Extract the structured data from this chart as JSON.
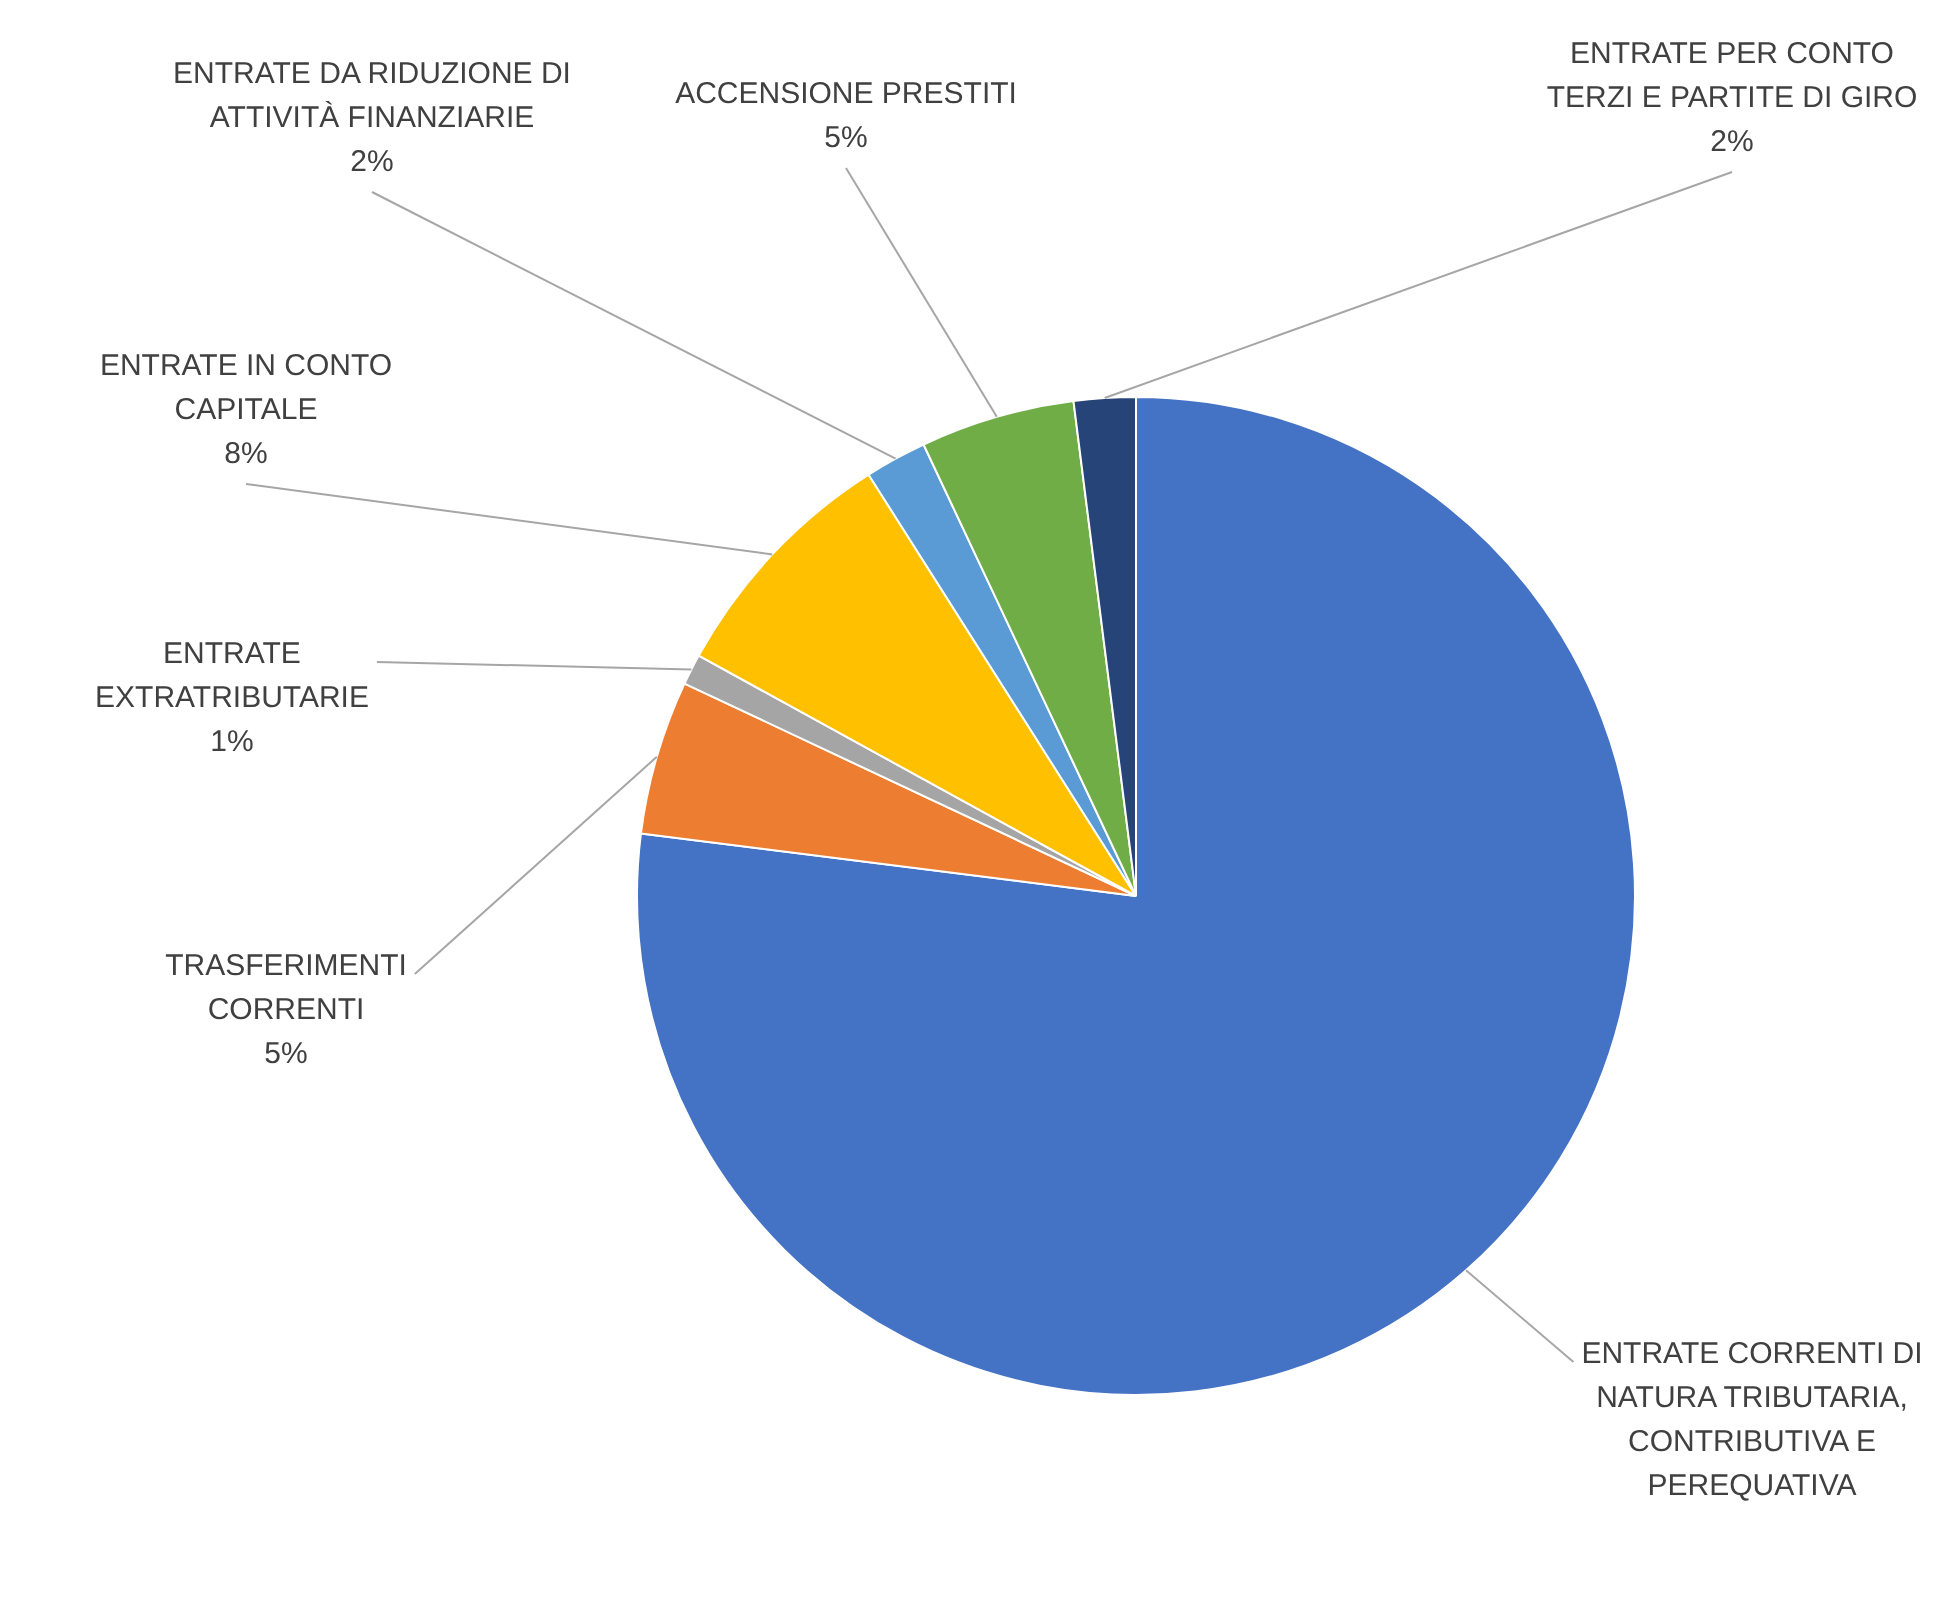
{
  "chart_data": {
    "type": "pie",
    "categories": [
      "ENTRATE CORRENTI DI NATURA TRIBUTARIA, CONTRIBUTIVA E PEREQUATIVA",
      "TRASFERIMENTI CORRENTI",
      "ENTRATE EXTRATRIBUTARIE",
      "ENTRATE IN CONTO CAPITALE",
      "ENTRATE DA RIDUZIONE DI ATTIVITÀ FINANZIARIE",
      "ACCENSIONE PRESTITI",
      "ENTRATE PER CONTO TERZI E PARTITE DI GIRO"
    ],
    "values": [
      77,
      5,
      1,
      8,
      2,
      5,
      2
    ],
    "colors": [
      "#4472c4",
      "#ed7d31",
      "#a5a5a5",
      "#ffc000",
      "#5b9bd5",
      "#70ad47",
      "#264478"
    ],
    "value_labels": [
      null,
      "5%",
      "1%",
      "8%",
      "2%",
      "5%",
      "2%"
    ],
    "legend": false
  }
}
